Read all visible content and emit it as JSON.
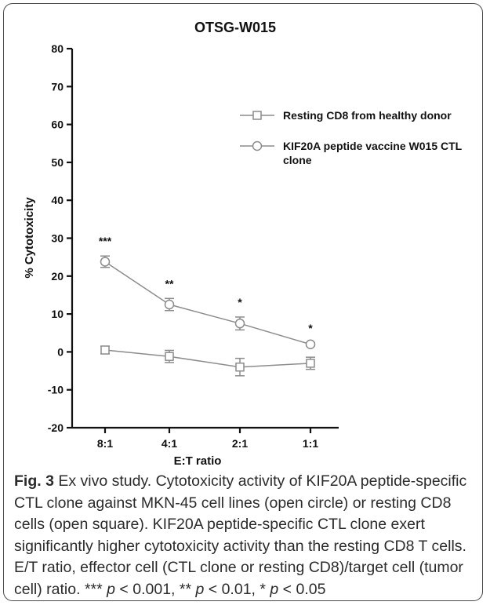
{
  "chart_data": {
    "type": "line",
    "title": "OTSG-W015",
    "xlabel": "E:T ratio",
    "ylabel": "% Cytotoxicity",
    "categories": [
      "8:1",
      "4:1",
      "2:1",
      "1:1"
    ],
    "ylim": [
      -20,
      80
    ],
    "yticks": [
      -20,
      -10,
      0,
      10,
      20,
      30,
      40,
      50,
      60,
      70,
      80
    ],
    "grid": false,
    "legend_position": "top-right",
    "series": [
      {
        "name": "Resting CD8 from healthy donor",
        "marker": "open-square",
        "values": [
          0.5,
          -1.2,
          -4.0,
          -3.0
        ],
        "errors": [
          1.0,
          1.6,
          2.3,
          1.6
        ]
      },
      {
        "name": "KIF20A peptide vaccine W015 CTL clone",
        "marker": "open-circle",
        "values": [
          23.8,
          12.5,
          7.5,
          2.0
        ],
        "errors": [
          1.5,
          1.6,
          1.7,
          0.4
        ]
      }
    ],
    "annotations": [
      "***",
      "**",
      "*",
      "*"
    ],
    "line_color": "#8c8c8c"
  },
  "caption": {
    "label": "Fig. 3",
    "text": " Ex vivo study. Cytotoxicity activity of KIF20A peptide-specific CTL clone against MKN-45 cell lines (open circle) or resting CD8 cells (open square). KIF20A peptide-specific CTL clone exert significantly higher cytotoxicity activity than the resting CD8 T cells. E/T ratio, effector cell (CTL clone or resting CD8)/target cell (tumor cell) ratio.",
    "stats": [
      {
        "stars": "***",
        "p": "p",
        "rel": " < 0.001,"
      },
      {
        "stars": "**",
        "p": "p",
        "rel": " < 0.01,"
      },
      {
        "stars": "*",
        "p": "p",
        "rel": " < 0.05"
      }
    ]
  }
}
